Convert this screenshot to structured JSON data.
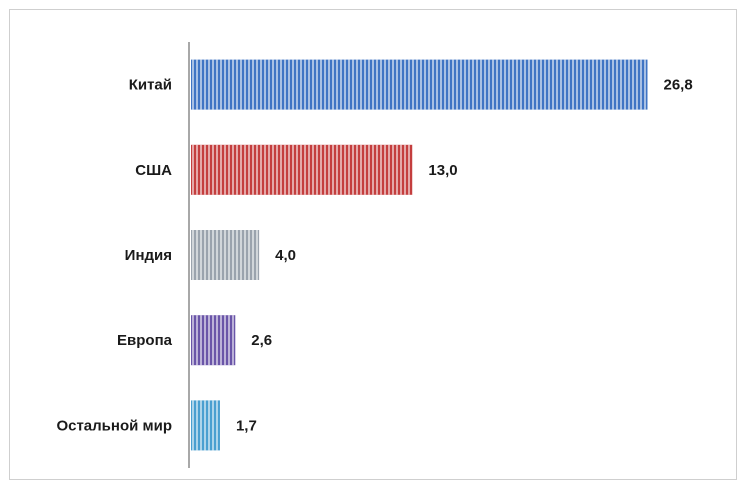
{
  "chart_data": {
    "type": "bar",
    "orientation": "horizontal",
    "categories": [
      "Китай",
      "США",
      "Индия",
      "Европа",
      "Остальной мир"
    ],
    "values": [
      26.8,
      13.0,
      4.0,
      2.6,
      1.7
    ],
    "value_labels": [
      "26,8",
      "13,0",
      "4,0",
      "2,6",
      "1,7"
    ],
    "colors": [
      "#3f74c4",
      "#c43e3e",
      "#9aa3ad",
      "#6a55a8",
      "#4a9fd0"
    ],
    "title": "",
    "xlabel": "",
    "ylabel": "",
    "xlim": [
      0,
      30
    ],
    "grid": false,
    "legend": "none"
  }
}
